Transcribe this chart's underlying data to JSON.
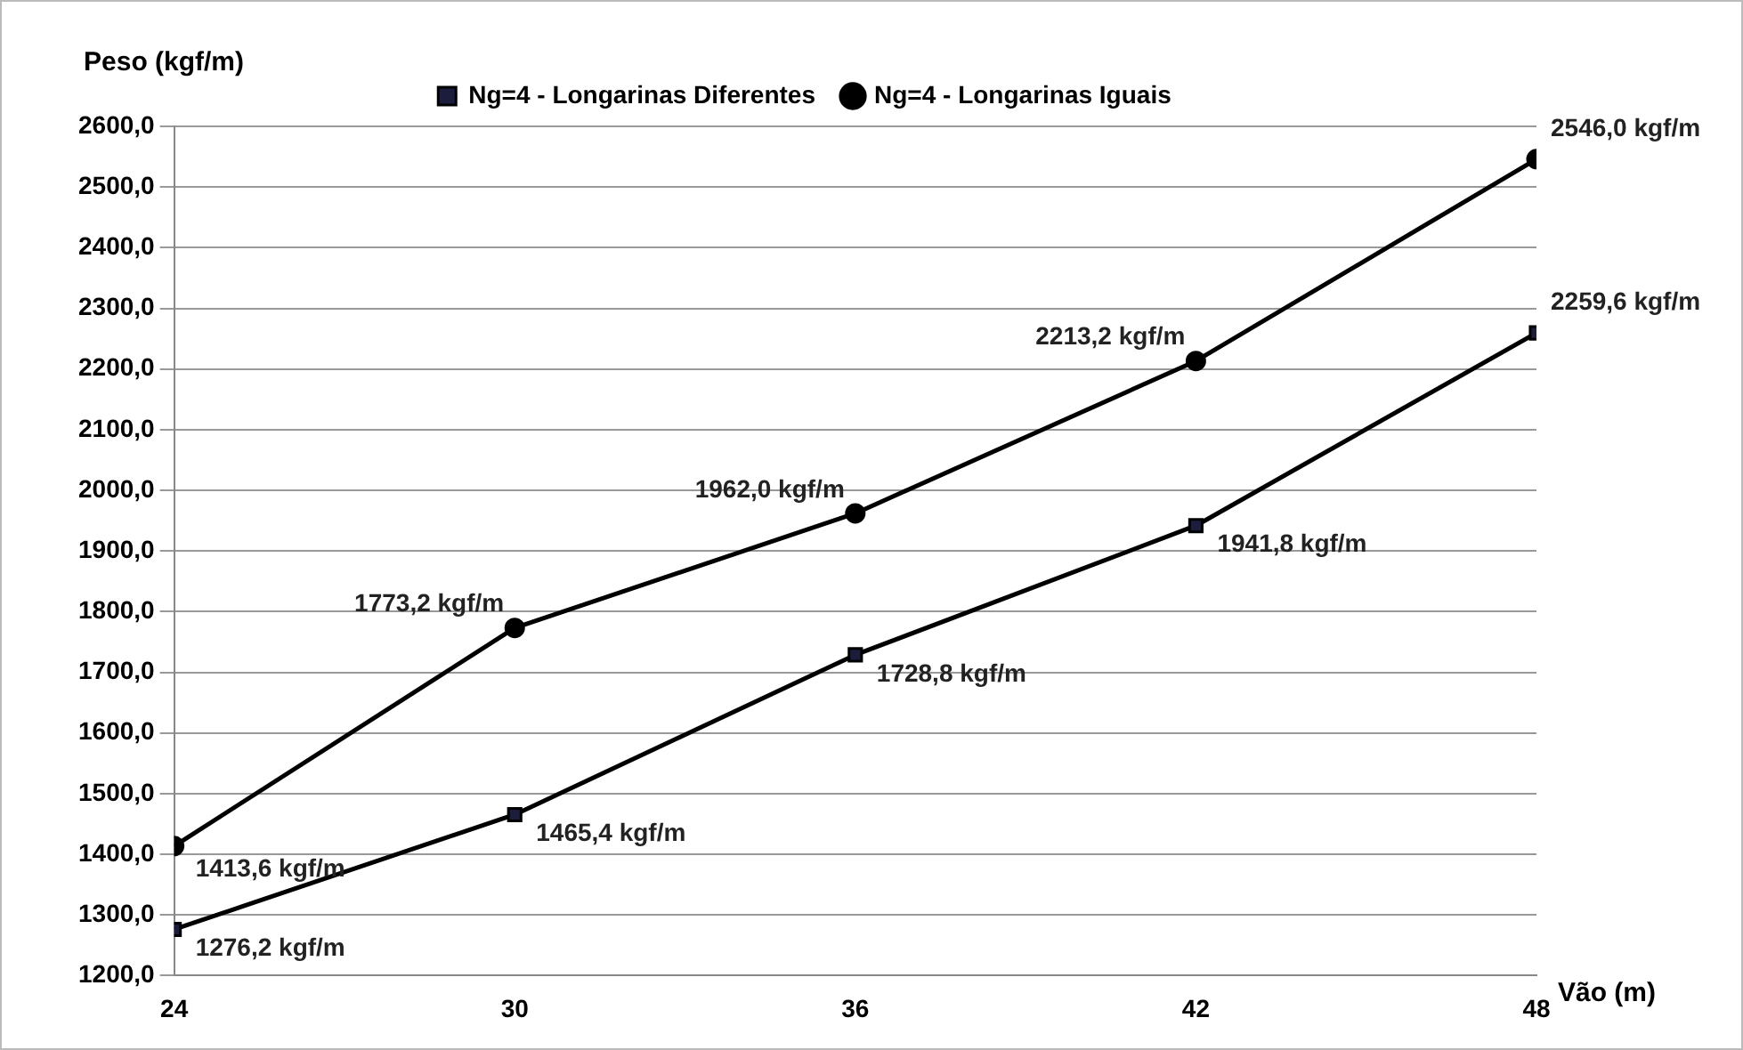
{
  "chart_data": {
    "type": "line",
    "xlabel": "Vão (m)",
    "ylabel": "Peso (kgf/m)",
    "x": [
      24,
      30,
      36,
      42,
      48
    ],
    "series": [
      {
        "name": "Ng=4 - Longarinas Diferentes",
        "color": "#1c1c3c",
        "marker": "square",
        "values": [
          1276.2,
          1465.4,
          1728.8,
          1941.8,
          2259.6
        ],
        "value_labels": [
          "1276,2 kgf/m",
          "1465,4 kgf/m",
          "1728,8 kgf/m",
          "1941,8 kgf/m",
          "2259,6 kgf/m"
        ]
      },
      {
        "name": "Ng=4 - Longarinas Iguais",
        "color": "#000000",
        "marker": "circle",
        "values": [
          1413.6,
          1773.2,
          1962.0,
          2213.2,
          2546.0
        ],
        "value_labels": [
          "1413,6 kgf/m",
          "1773,2 kgf/m",
          "1962,0 kgf/m",
          "2213,2 kgf/m",
          "2546,0 kgf/m"
        ]
      }
    ],
    "xlim": [
      24,
      48
    ],
    "xticks": [
      24,
      30,
      36,
      42,
      48
    ],
    "ylim": [
      1200,
      2600
    ],
    "yticks": [
      {
        "value": 1200,
        "label": "1200,0"
      },
      {
        "value": 1300,
        "label": "1300,0"
      },
      {
        "value": 1400,
        "label": "1400,0"
      },
      {
        "value": 1500,
        "label": "1500,0"
      },
      {
        "value": 1600,
        "label": "1600,0"
      },
      {
        "value": 1700,
        "label": "1700,0"
      },
      {
        "value": 1800,
        "label": "1800,0"
      },
      {
        "value": 1900,
        "label": "1900,0"
      },
      {
        "value": 2000,
        "label": "2000,0"
      },
      {
        "value": 2100,
        "label": "2100,0"
      },
      {
        "value": 2200,
        "label": "2200,0"
      },
      {
        "value": 2300,
        "label": "2300,0"
      },
      {
        "value": 2400,
        "label": "2400,0"
      },
      {
        "value": 2500,
        "label": "2500,0"
      },
      {
        "value": 2600,
        "label": "2600,0"
      }
    ],
    "grid": "y",
    "legend": "top",
    "line_style": "solid"
  }
}
